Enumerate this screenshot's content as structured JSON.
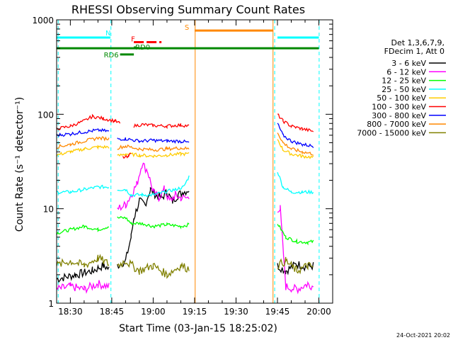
{
  "chart_data": {
    "type": "line",
    "title": "RHESSI Observing Summary Count Rates",
    "xlabel": "Start Time (03-Jan-15 18:25:02)",
    "ylabel": "Count Rate (s⁻¹ detector⁻¹)",
    "x_range": [
      "18:25:02",
      "20:05:00"
    ],
    "y_range": [
      1,
      1000
    ],
    "y_scale": "log",
    "x_ticks": [
      "18:30",
      "18:45",
      "19:00",
      "19:15",
      "19:30",
      "19:45",
      "20:00"
    ],
    "x_tick_minutes": [
      30,
      45,
      60,
      75,
      90,
      105,
      120
    ],
    "y_ticks": [
      {
        "value": 1,
        "label": "1"
      },
      {
        "value": 10,
        "label": "10"
      },
      {
        "value": 100,
        "label": "100"
      },
      {
        "value": 1000,
        "label": "1000"
      }
    ],
    "legend_placement": "top-right",
    "legend_header": [
      "Det 1,3,6,7,9,",
      "FDecim 1, Att 0"
    ],
    "series": [
      {
        "name": "3 - 6 keV",
        "color": "#000000",
        "segments": [
          [
            [
              25,
              1.8
            ],
            [
              32,
              2
            ],
            [
              38,
              2.2
            ],
            [
              42,
              2.5
            ],
            [
              44,
              2.3
            ]
          ],
          [
            [
              47,
              2.5
            ],
            [
              50,
              2.8
            ],
            [
              52,
              5
            ],
            [
              53,
              8
            ],
            [
              55,
              12
            ],
            [
              57,
              11
            ],
            [
              59,
              16
            ],
            [
              61,
              14
            ],
            [
              63,
              13
            ],
            [
              65,
              15
            ],
            [
              67,
              12
            ],
            [
              69,
              14
            ],
            [
              71,
              15
            ],
            [
              73,
              16
            ]
          ],
          [
            [
              105,
              2.5
            ],
            [
              108,
              2.2
            ],
            [
              112,
              2.6
            ],
            [
              116,
              2.4
            ],
            [
              118,
              2.5
            ]
          ]
        ]
      },
      {
        "name": "6 - 12 keV",
        "color": "#ff00ff",
        "segments": [
          [
            [
              25,
              1.4
            ],
            [
              30,
              1.5
            ],
            [
              35,
              1.4
            ],
            [
              40,
              1.6
            ],
            [
              44,
              1.5
            ]
          ],
          [
            [
              47,
              10
            ],
            [
              50,
              11
            ],
            [
              52,
              14
            ],
            [
              54,
              18
            ],
            [
              56,
              30
            ],
            [
              58,
              25
            ],
            [
              60,
              15
            ],
            [
              62,
              13
            ],
            [
              64,
              16
            ],
            [
              66,
              12
            ],
            [
              68,
              14
            ],
            [
              70,
              13
            ],
            [
              73,
              13
            ]
          ],
          [
            [
              105,
              10
            ],
            [
              106,
              10
            ],
            [
              108,
              1.5
            ],
            [
              112,
              1.4
            ],
            [
              116,
              1.6
            ],
            [
              118,
              1.5
            ]
          ]
        ]
      },
      {
        "name": "12 - 25 keV",
        "color": "#00ff00",
        "segments": [
          [
            [
              25,
              5.5
            ],
            [
              30,
              6
            ],
            [
              35,
              6.5
            ],
            [
              40,
              6
            ],
            [
              44,
              6.5
            ]
          ],
          [
            [
              47,
              8
            ],
            [
              50,
              8
            ],
            [
              52,
              7
            ],
            [
              56,
              7
            ],
            [
              60,
              6.5
            ],
            [
              65,
              6.8
            ],
            [
              70,
              6.5
            ],
            [
              73,
              6.8
            ]
          ],
          [
            [
              105,
              7
            ],
            [
              108,
              5
            ],
            [
              112,
              4.5
            ],
            [
              116,
              4.4
            ],
            [
              118,
              4.5
            ]
          ]
        ]
      },
      {
        "name": "25 - 50 keV",
        "color": "#00ffff",
        "segments": [
          [
            [
              25,
              15
            ],
            [
              30,
              15
            ],
            [
              35,
              16
            ],
            [
              40,
              17
            ],
            [
              44,
              17
            ]
          ],
          [
            [
              47,
              16
            ],
            [
              50,
              16
            ],
            [
              52,
              14
            ],
            [
              56,
              14
            ],
            [
              60,
              14
            ],
            [
              64,
              15
            ],
            [
              68,
              16
            ],
            [
              71,
              17
            ],
            [
              73,
              22
            ]
          ],
          [
            [
              105,
              25
            ],
            [
              107,
              17
            ],
            [
              110,
              15
            ],
            [
              114,
              15
            ],
            [
              118,
              15
            ]
          ]
        ]
      },
      {
        "name": "50 - 100 keV",
        "color": "#ffcc00",
        "segments": [
          [
            [
              25,
              37
            ],
            [
              30,
              40
            ],
            [
              35,
              43
            ],
            [
              40,
              45
            ],
            [
              44,
              45
            ]
          ],
          [
            [
              47,
              36
            ],
            [
              50,
              38
            ],
            [
              55,
              37
            ],
            [
              60,
              36
            ],
            [
              65,
              37
            ],
            [
              70,
              38
            ],
            [
              73,
              38
            ]
          ],
          [
            [
              105,
              55
            ],
            [
              107,
              42
            ],
            [
              110,
              38
            ],
            [
              114,
              36
            ],
            [
              118,
              35
            ]
          ]
        ]
      },
      {
        "name": "100 - 300 keV",
        "color": "#ff0000",
        "segments": [
          [
            [
              25,
              70
            ],
            [
              30,
              75
            ],
            [
              35,
              85
            ],
            [
              38,
              95
            ],
            [
              42,
              90
            ],
            [
              46,
              85
            ],
            [
              48,
              80
            ]
          ],
          [
            [
              49,
              35
            ],
            [
              51,
              35
            ],
            [
              52,
              40
            ]
          ],
          [
            [
              53,
              75
            ],
            [
              56,
              78
            ],
            [
              60,
              76
            ],
            [
              65,
              75
            ],
            [
              70,
              77
            ],
            [
              73,
              75
            ]
          ],
          [
            [
              105,
              100
            ],
            [
              107,
              85
            ],
            [
              110,
              75
            ],
            [
              114,
              70
            ],
            [
              118,
              66
            ]
          ]
        ]
      },
      {
        "name": "300 - 800 keV",
        "color": "#0000ff",
        "segments": [
          [
            [
              25,
              60
            ],
            [
              30,
              62
            ],
            [
              35,
              65
            ],
            [
              40,
              68
            ],
            [
              44,
              66
            ]
          ],
          [
            [
              47,
              55
            ],
            [
              50,
              55
            ],
            [
              55,
              52
            ],
            [
              60,
              53
            ],
            [
              65,
              52
            ],
            [
              70,
              52
            ],
            [
              73,
              50
            ]
          ],
          [
            [
              105,
              80
            ],
            [
              107,
              60
            ],
            [
              110,
              52
            ],
            [
              114,
              48
            ],
            [
              118,
              46
            ]
          ]
        ]
      },
      {
        "name": "800 - 7000 keV",
        "color": "#ff8800",
        "segments": [
          [
            [
              25,
              45
            ],
            [
              30,
              48
            ],
            [
              35,
              52
            ],
            [
              40,
              56
            ],
            [
              44,
              55
            ]
          ],
          [
            [
              47,
              44
            ],
            [
              50,
              46
            ],
            [
              55,
              43
            ],
            [
              60,
              42
            ],
            [
              65,
              43
            ],
            [
              70,
              44
            ],
            [
              73,
              43
            ]
          ],
          [
            [
              105,
              65
            ],
            [
              107,
              50
            ],
            [
              110,
              43
            ],
            [
              114,
              40
            ],
            [
              118,
              38
            ]
          ]
        ]
      },
      {
        "name": "7000 - 15000 keV",
        "color": "#808000",
        "segments": [
          [
            [
              25,
              2.5
            ],
            [
              30,
              2.8
            ],
            [
              35,
              2.5
            ],
            [
              40,
              3
            ],
            [
              44,
              2.6
            ]
          ],
          [
            [
              47,
              2.5
            ],
            [
              50,
              2.8
            ],
            [
              55,
              2.2
            ],
            [
              60,
              2.5
            ],
            [
              65,
              2
            ],
            [
              70,
              2.5
            ],
            [
              73,
              2.3
            ]
          ],
          [
            [
              105,
              2.5
            ],
            [
              108,
              2.8
            ],
            [
              112,
              2.2
            ],
            [
              116,
              2.5
            ],
            [
              118,
              2.4
            ]
          ]
        ]
      }
    ],
    "annotations": [
      {
        "label": "N",
        "color": "#00ffff",
        "y": 650,
        "intervals": [
          [
            25,
            44.5
          ],
          [
            105,
            120
          ]
        ]
      },
      {
        "label": "S",
        "color": "#ff8800",
        "y": 770,
        "intervals": [
          [
            75,
            103.5
          ]
        ]
      },
      {
        "label": "F",
        "color": "#ff0000",
        "y": 580,
        "intervals": [
          [
            53,
            63
          ]
        ]
      },
      {
        "label": "RD0",
        "color": "#008800",
        "y": 510,
        "intervals": [
          [
            53,
            53.8
          ]
        ]
      },
      {
        "label": "RD6",
        "color": "#008800",
        "y": 430,
        "intervals": [
          [
            48,
            53
          ]
        ]
      },
      {
        "label": "",
        "color": "#008800",
        "y": 500,
        "intervals": [
          [
            25,
            120
          ]
        ]
      }
    ],
    "vlines": [
      {
        "x": 25.6,
        "color": "#00ffff",
        "style": "dashed"
      },
      {
        "x": 44.7,
        "color": "#00ffff",
        "style": "dashed"
      },
      {
        "x": 75.2,
        "color": "#ff8800",
        "style": "solid"
      },
      {
        "x": 103.4,
        "color": "#ff8800",
        "style": "solid"
      },
      {
        "x": 104.0,
        "color": "#00ffff",
        "style": "dashed"
      },
      {
        "x": 120.1,
        "color": "#00ffff",
        "style": "dashed"
      }
    ]
  },
  "footer_date": "24-Oct-2021 20:02"
}
